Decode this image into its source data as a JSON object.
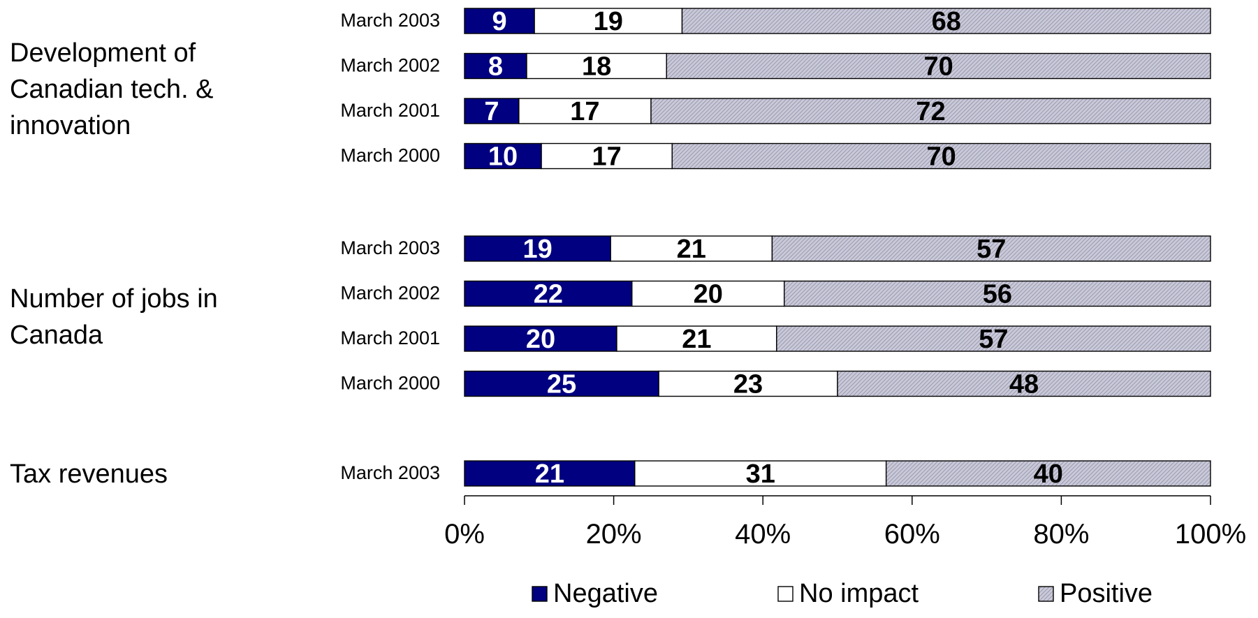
{
  "chart_data": {
    "type": "bar",
    "orientation": "horizontal",
    "stacking": "percent",
    "xlim": [
      0,
      100
    ],
    "x_ticks": [
      "0%",
      "20%",
      "40%",
      "60%",
      "80%",
      "100%"
    ],
    "grid": false,
    "legend_position": "bottom",
    "series": [
      {
        "name": "Negative",
        "color": "#000080",
        "fill": "solid"
      },
      {
        "name": "No impact",
        "color": "#ffffff",
        "fill": "solid"
      },
      {
        "name": "Positive",
        "color": "#b8b8cc",
        "fill": "hatched"
      }
    ],
    "groups": [
      {
        "label_lines": [
          "Development of",
          "Canadian tech. &",
          "innovation"
        ],
        "rows": [
          {
            "label": "March 2003",
            "values": [
              9,
              19,
              68
            ]
          },
          {
            "label": "March 2002",
            "values": [
              8,
              18,
              70
            ]
          },
          {
            "label": "March 2001",
            "values": [
              7,
              17,
              72
            ]
          },
          {
            "label": "March 2000",
            "values": [
              10,
              17,
              70
            ]
          }
        ]
      },
      {
        "label_lines": [
          "Number of jobs in",
          "Canada"
        ],
        "rows": [
          {
            "label": "March 2003",
            "values": [
              19,
              21,
              57
            ]
          },
          {
            "label": "March 2002",
            "values": [
              22,
              20,
              56
            ]
          },
          {
            "label": "March 2001",
            "values": [
              20,
              21,
              57
            ]
          },
          {
            "label": "March 2000",
            "values": [
              25,
              23,
              48
            ]
          }
        ]
      },
      {
        "label_lines": [
          "Tax revenues"
        ],
        "rows": [
          {
            "label": "March 2003",
            "values": [
              21,
              31,
              40
            ]
          }
        ]
      }
    ]
  }
}
